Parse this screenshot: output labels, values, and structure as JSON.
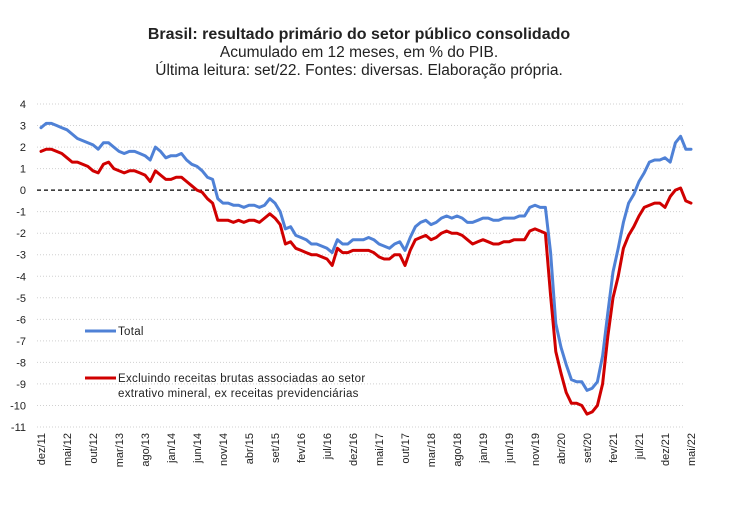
{
  "chart_data": {
    "type": "line",
    "title": "Brasil: resultado primário do setor público consolidado",
    "subtitle": "Acumulado em 12 meses, em % do PIB.",
    "note": "Última leitura: set/22. Fontes: diversas. Elaboração própria.",
    "xlabel": "",
    "ylabel": "",
    "ylim": [
      -11,
      4
    ],
    "yticks": [
      "4",
      "3",
      "2",
      "1",
      "0",
      "-1",
      "-2",
      "-3",
      "-4",
      "-5",
      "-6",
      "-7",
      "-8",
      "-9",
      "-10",
      "-11"
    ],
    "x_tick_labels": [
      "dez/11",
      "mai/12",
      "out/12",
      "mar/13",
      "ago/13",
      "jan/14",
      "jun/14",
      "nov/14",
      "abr/15",
      "set/15",
      "fev/16",
      "jul/16",
      "dez/16",
      "mai/17",
      "out/17",
      "mar/18",
      "ago/18",
      "jan/19",
      "jun/19",
      "nov/19",
      "abr/20",
      "set/20",
      "fev/21",
      "jul/21",
      "dez/21",
      "mai/22"
    ],
    "x_start": "dez/11",
    "grid": "horizontal dotted",
    "zero_line": "dashed",
    "legend_position": "bottom-left inside",
    "series": [
      {
        "name": "Total",
        "color": "#4F81D6",
        "values": [
          2.9,
          3.1,
          3.1,
          3.0,
          2.9,
          2.8,
          2.6,
          2.4,
          2.3,
          2.2,
          2.1,
          1.9,
          2.2,
          2.2,
          2.0,
          1.8,
          1.7,
          1.8,
          1.8,
          1.7,
          1.6,
          1.4,
          2.0,
          1.8,
          1.5,
          1.6,
          1.6,
          1.7,
          1.4,
          1.2,
          1.1,
          0.9,
          0.6,
          0.5,
          -0.4,
          -0.6,
          -0.6,
          -0.7,
          -0.7,
          -0.8,
          -0.7,
          -0.7,
          -0.8,
          -0.7,
          -0.4,
          -0.6,
          -1.0,
          -1.8,
          -1.7,
          -2.1,
          -2.2,
          -2.3,
          -2.5,
          -2.5,
          -2.6,
          -2.7,
          -2.9,
          -2.3,
          -2.5,
          -2.5,
          -2.3,
          -2.3,
          -2.3,
          -2.2,
          -2.3,
          -2.5,
          -2.6,
          -2.7,
          -2.5,
          -2.4,
          -2.8,
          -2.2,
          -1.7,
          -1.5,
          -1.4,
          -1.6,
          -1.5,
          -1.3,
          -1.2,
          -1.3,
          -1.2,
          -1.3,
          -1.5,
          -1.5,
          -1.4,
          -1.3,
          -1.3,
          -1.4,
          -1.4,
          -1.3,
          -1.3,
          -1.3,
          -1.2,
          -1.2,
          -0.8,
          -0.7,
          -0.8,
          -0.8,
          -2.9,
          -6.2,
          -7.3,
          -8.1,
          -8.8,
          -8.9,
          -8.9,
          -9.3,
          -9.2,
          -8.9,
          -7.7,
          -5.7,
          -3.8,
          -2.7,
          -1.5,
          -0.6,
          -0.2,
          0.4,
          0.8,
          1.3,
          1.4,
          1.4,
          1.5,
          1.3,
          2.2,
          2.5,
          1.9,
          1.9
        ]
      },
      {
        "name": "Excluindo receitas brutas associadas ao setor extrativo mineral, ex receitas previdenciárias",
        "color": "#D00000",
        "values": [
          1.8,
          1.9,
          1.9,
          1.8,
          1.7,
          1.5,
          1.3,
          1.3,
          1.2,
          1.1,
          0.9,
          0.8,
          1.2,
          1.3,
          1.0,
          0.9,
          0.8,
          0.9,
          0.9,
          0.8,
          0.7,
          0.4,
          0.9,
          0.7,
          0.5,
          0.5,
          0.6,
          0.6,
          0.4,
          0.2,
          0.0,
          -0.1,
          -0.4,
          -0.6,
          -1.4,
          -1.4,
          -1.4,
          -1.5,
          -1.4,
          -1.5,
          -1.4,
          -1.4,
          -1.5,
          -1.3,
          -1.1,
          -1.3,
          -1.6,
          -2.5,
          -2.4,
          -2.7,
          -2.8,
          -2.9,
          -3.0,
          -3.0,
          -3.1,
          -3.2,
          -3.5,
          -2.7,
          -2.9,
          -2.9,
          -2.8,
          -2.8,
          -2.8,
          -2.8,
          -2.9,
          -3.1,
          -3.2,
          -3.2,
          -3.0,
          -3.0,
          -3.5,
          -2.8,
          -2.3,
          -2.2,
          -2.1,
          -2.3,
          -2.2,
          -2.0,
          -1.9,
          -2.0,
          -2.0,
          -2.1,
          -2.3,
          -2.5,
          -2.4,
          -2.3,
          -2.4,
          -2.5,
          -2.5,
          -2.4,
          -2.4,
          -2.3,
          -2.3,
          -2.3,
          -1.9,
          -1.8,
          -1.9,
          -2.0,
          -4.9,
          -7.5,
          -8.5,
          -9.4,
          -9.9,
          -9.9,
          -10.0,
          -10.4,
          -10.3,
          -10.0,
          -9.0,
          -6.8,
          -5.0,
          -4.0,
          -2.7,
          -2.1,
          -1.7,
          -1.2,
          -0.8,
          -0.7,
          -0.6,
          -0.6,
          -0.8,
          -0.3,
          0.0,
          0.1,
          -0.5,
          -0.6
        ]
      }
    ]
  }
}
